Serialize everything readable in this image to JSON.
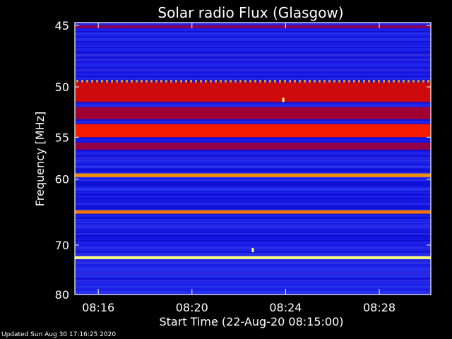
{
  "chart_data": {
    "type": "heatmap",
    "title": "Solar radio Flux (Glasgow)",
    "xlabel": "Start Time (22-Aug-20 08:15:00)",
    "ylabel": "Frequency [MHz]",
    "x_ticks": [
      "08:16",
      "08:20",
      "08:24",
      "08:28"
    ],
    "x_tick_minutes": [
      16,
      20,
      24,
      28
    ],
    "xlim_minutes": [
      15,
      30.2
    ],
    "y_ticks": [
      45,
      50,
      55,
      60,
      70,
      80
    ],
    "ylim": [
      44.8,
      80
    ],
    "y_scale": "reciprocal",
    "colormap": [
      "#0000b4",
      "#1e1ef0",
      "#3c50ff",
      "#8c0050",
      "#b40014",
      "#ff1e00",
      "#ff9600",
      "#ffff78"
    ],
    "bands": [
      {
        "freq": 45.1,
        "width": 0.2,
        "intensity": 0.45
      },
      {
        "freq": 49.5,
        "width": 0.25,
        "intensity": 0.85,
        "dashed": true
      },
      {
        "freq": 50.5,
        "width": 1.8,
        "intensity": 0.62
      },
      {
        "freq": 52.5,
        "width": 1.2,
        "intensity": 0.5
      },
      {
        "freq": 54.3,
        "width": 1.4,
        "intensity": 0.7
      },
      {
        "freq": 56.0,
        "width": 0.8,
        "intensity": 0.45
      },
      {
        "freq": 59.5,
        "width": 0.45,
        "intensity": 0.85
      },
      {
        "freq": 64.6,
        "width": 0.5,
        "intensity": 0.82
      },
      {
        "freq": 72.3,
        "width": 0.55,
        "intensity": 1.0
      }
    ],
    "bursts": [
      {
        "time_minutes": 23.9,
        "freq": 51.2
      },
      {
        "time_minutes": 22.6,
        "freq": 70.9
      }
    ]
  },
  "footer": {
    "updated": "Updated Sun Aug 30 17:16:25 2020"
  }
}
